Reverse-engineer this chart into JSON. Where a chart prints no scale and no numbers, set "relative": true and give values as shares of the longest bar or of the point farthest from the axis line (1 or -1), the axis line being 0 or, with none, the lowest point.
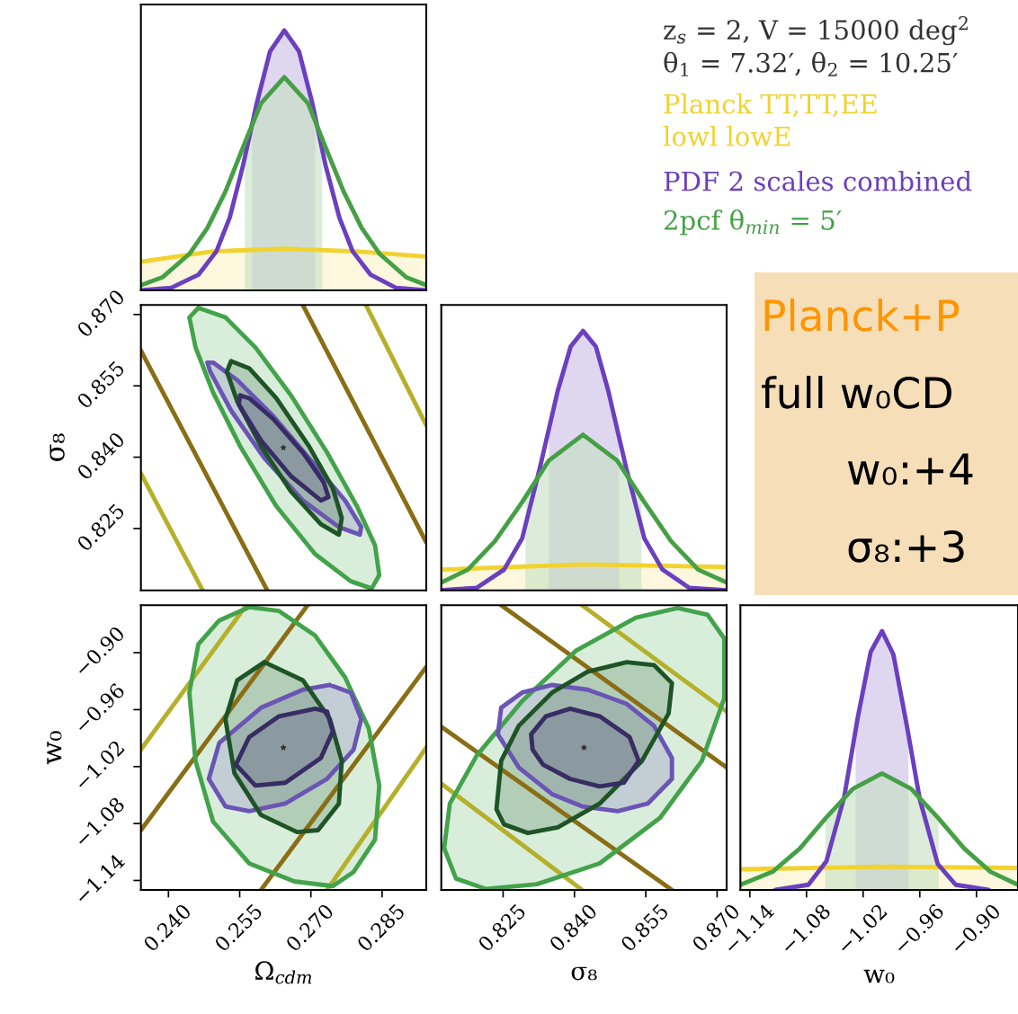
{
  "chart_data": [
    {
      "type": "line",
      "relative": true,
      "xlim": [
        0.2342,
        0.2943
      ],
      "tick_labels": false,
      "legend": "right",
      "legend_title": "z$_{s}$ = 2, V = 15000 deg$^{2}$\nθ$_{1}$ = 7.32′, θ$_{2}$ = 10.25′",
      "annotations": [
        "Planck+P",
        "full w₀CD",
        "w₀:+4",
        "σ₈:+3"
      ],
      "series": [
        {
          "name": "Planck TT,TT,EE\nlowl lowE",
          "color": "#f2d22e",
          "x": [
            0.2342,
            0.2493,
            0.2644,
            0.2796,
            0.2943
          ],
          "values": [
            0.11,
            0.15,
            0.16,
            0.15,
            0.13
          ]
        },
        {
          "name": "PDF 2 scales combined",
          "color": "#6b3fbf",
          "x": [
            0.2342,
            0.2406,
            0.2463,
            0.2501,
            0.2529,
            0.2557,
            0.2586,
            0.2614,
            0.2644,
            0.2675,
            0.2703,
            0.2731,
            0.276,
            0.2788,
            0.2826,
            0.2879,
            0.2943
          ],
          "values": [
            0,
            0.01,
            0.06,
            0.15,
            0.28,
            0.48,
            0.72,
            0.92,
            1,
            0.92,
            0.72,
            0.48,
            0.28,
            0.15,
            0.06,
            0.01,
            0
          ]
        },
        {
          "name": "2pcf θ$_{min}$ = 5′",
          "color": "#45a045",
          "x": [
            0.2342,
            0.2387,
            0.2444,
            0.2482,
            0.252,
            0.2557,
            0.2595,
            0.2644,
            0.2694,
            0.2731,
            0.2769,
            0.2807,
            0.2845,
            0.2901,
            0.2943
          ],
          "values": [
            0.02,
            0.05,
            0.14,
            0.24,
            0.38,
            0.55,
            0.72,
            0.82,
            0.72,
            0.55,
            0.38,
            0.24,
            0.14,
            0.05,
            0.02
          ]
        }
      ],
      "bands": [
        {
          "axis": "x",
          "from": 0.2342,
          "to": 0.2943,
          "color": "#faf1c6"
        },
        {
          "axis": "x",
          "from": 0.2576,
          "to": 0.2709,
          "color": "#c9bde6"
        },
        {
          "axis": "x",
          "from": 0.2561,
          "to": 0.2724,
          "color": "#c4dfc2"
        }
      ]
    },
    {
      "type": "area",
      "xlim": [
        0.2342,
        0.2943
      ],
      "ylim": [
        0.812,
        0.872
      ],
      "ylabel": "σ₈",
      "tick_labels": "y",
      "yticks": [
        {
          "value": 0.87,
          "label": "0.870"
        },
        0.855,
        {
          "value": 0.84,
          "label": "0.840"
        },
        0.825
      ],
      "series": [
        {
          "type": "line",
          "color": "#b5b02a",
          "x": [
            0.2342,
            0.2472,
            null,
            0.2816,
            0.2943
          ],
          "values": [
            0.8366,
            0.812,
            null,
            0.872,
            0.8467
          ]
        },
        {
          "type": "line",
          "color": "#8a6d14",
          "x": [
            0.2342,
            0.2608,
            null,
            0.2683,
            0.2943
          ],
          "values": [
            0.8624,
            0.812,
            null,
            0.872,
            0.8221
          ]
        },
        {
          "color": "#43a34b",
          "x": [
            0.2463,
            0.2444,
            0.2457,
            0.2494,
            0.2551,
            0.2627,
            0.2709,
            0.2784,
            0.2828,
            0.2844,
            0.2835,
            0.2797,
            0.2734,
            0.2658,
            0.2583,
            0.252,
            0.2463
          ],
          "values": [
            0.8714,
            0.8694,
            0.8631,
            0.8536,
            0.8423,
            0.8297,
            0.8196,
            0.8139,
            0.8124,
            0.8152,
            0.8215,
            0.8297,
            0.841,
            0.853,
            0.8631,
            0.8694,
            0.8714
          ]
        },
        {
          "color": "#6a55b5",
          "x": [
            0.2482,
            0.2488,
            0.2532,
            0.2602,
            0.2683,
            0.2759,
            0.2803,
            0.2806,
            0.2772,
            0.2696,
            0.2621,
            0.2545,
            0.2494,
            0.2482
          ],
          "values": [
            0.8599,
            0.858,
            0.8498,
            0.8398,
            0.8309,
            0.8253,
            0.8237,
            0.8253,
            0.8309,
            0.8398,
            0.8486,
            0.8562,
            0.8599,
            0.8599
          ]
        },
        {
          "color": "#1e5425",
          "x": [
            0.2532,
            0.2523,
            0.2545,
            0.2595,
            0.2658,
            0.2721,
            0.2759,
            0.2765,
            0.2746,
            0.2696,
            0.2627,
            0.257,
            0.2532
          ],
          "values": [
            0.8602,
            0.858,
            0.8517,
            0.8423,
            0.8328,
            0.8259,
            0.8237,
            0.8272,
            0.8335,
            0.8423,
            0.8524,
            0.8587,
            0.8602
          ]
        },
        {
          "color": "#372c63",
          "x": [
            0.2551,
            0.2548,
            0.2595,
            0.2658,
            0.2721,
            0.2737,
            0.2727,
            0.2683,
            0.2621,
            0.257,
            0.2551
          ],
          "values": [
            0.853,
            0.8511,
            0.8435,
            0.836,
            0.8309,
            0.8316,
            0.8347,
            0.841,
            0.848,
            0.8524,
            0.853
          ]
        },
        {
          "type": "scatter",
          "marker": "star",
          "color": "#333333",
          "x": [
            0.2642
          ],
          "values": [
            0.842
          ]
        }
      ]
    },
    {
      "type": "line",
      "relative": true,
      "xlim": [
        0.812,
        0.872
      ],
      "tick_labels": false,
      "series": [
        {
          "color": "#f2d22e",
          "x": [
            0.812,
            0.8418,
            0.872
          ],
          "values": [
            0.08,
            0.1,
            0.09
          ]
        },
        {
          "color": "#6b3fbf",
          "x": [
            0.812,
            0.8195,
            0.8252,
            0.829,
            0.8327,
            0.8365,
            0.8392,
            0.8418,
            0.8445,
            0.8471,
            0.8509,
            0.8547,
            0.8585,
            0.8641,
            0.872
          ],
          "values": [
            0,
            0.01,
            0.08,
            0.2,
            0.47,
            0.77,
            0.94,
            1,
            0.94,
            0.77,
            0.47,
            0.2,
            0.08,
            0.01,
            0
          ]
        },
        {
          "color": "#45a045",
          "x": [
            0.812,
            0.8176,
            0.8233,
            0.829,
            0.8346,
            0.8418,
            0.849,
            0.8547,
            0.8603,
            0.866,
            0.872
          ],
          "values": [
            0.03,
            0.08,
            0.19,
            0.34,
            0.5,
            0.6,
            0.5,
            0.34,
            0.19,
            0.08,
            0.03
          ]
        }
      ],
      "bands": [
        {
          "axis": "x",
          "from": 0.812,
          "to": 0.872,
          "color": "#faf1c6"
        },
        {
          "axis": "x",
          "from": 0.8346,
          "to": 0.8494,
          "color": "#c9bde6"
        },
        {
          "axis": "x",
          "from": 0.8297,
          "to": 0.8541,
          "color": "#c4dfc2"
        }
      ]
    },
    {
      "type": "area",
      "xlim": [
        0.2342,
        0.2943
      ],
      "ylim": [
        -1.15,
        -0.85
      ],
      "xlabel": "Ω$_{cdm}$",
      "ylabel": "w₀",
      "xticks": [
        {
          "value": 0.24,
          "label": "0.240"
        },
        0.255,
        {
          "value": 0.27,
          "label": "0.270"
        },
        0.285
      ],
      "yticks": [
        {
          "value": -0.9,
          "label": "−0.90"
        },
        {
          "value": -0.96,
          "label": "−0.96"
        },
        {
          "value": -1.02,
          "label": "−1.02"
        },
        {
          "value": -1.08,
          "label": "−1.08"
        },
        {
          "value": -1.14,
          "label": "−1.14"
        }
      ],
      "series": [
        {
          "type": "line",
          "color": "#b5b02a",
          "x": [
            0.2342,
            0.2564,
            null,
            0.2734,
            0.2943
          ],
          "values": [
            -1.002,
            -0.85,
            null,
            -1.15,
            -1.0
          ]
        },
        {
          "type": "line",
          "color": "#8a6d14",
          "x": [
            0.2342,
            0.2693,
            null,
            0.2595,
            0.2943
          ],
          "values": [
            -1.087,
            -0.85,
            null,
            -1.15,
            -0.915
          ]
        },
        {
          "color": "#43a34b",
          "x": [
            0.257,
            0.2507,
            0.2463,
            0.2444,
            0.2457,
            0.2494,
            0.257,
            0.2665,
            0.2746,
            0.279,
            0.2835,
            0.2844,
            0.2822,
            0.2772,
            0.2709,
            0.2633,
            0.257
          ],
          "values": [
            -0.852,
            -0.866,
            -0.891,
            -0.942,
            -1.014,
            -1.078,
            -1.122,
            -1.141,
            -1.146,
            -1.131,
            -1.097,
            -1.04,
            -0.98,
            -0.926,
            -0.882,
            -0.856,
            -0.852
          ]
        },
        {
          "color": "#6a55b5",
          "x": [
            0.274,
            0.2683,
            0.2595,
            0.2507,
            0.2485,
            0.252,
            0.257,
            0.2646,
            0.2734,
            0.279,
            0.2806,
            0.2784,
            0.274
          ],
          "values": [
            -0.934,
            -0.939,
            -0.958,
            -0.995,
            -1.033,
            -1.062,
            -1.067,
            -1.059,
            -1.033,
            -1.002,
            -0.97,
            -0.942,
            -0.934
          ]
        },
        {
          "color": "#1e5425",
          "x": [
            0.2602,
            0.2545,
            0.252,
            0.2539,
            0.2595,
            0.2671,
            0.2715,
            0.2759,
            0.2765,
            0.274,
            0.2683,
            0.2602
          ],
          "values": [
            -0.91,
            -0.929,
            -0.97,
            -1.027,
            -1.071,
            -1.089,
            -1.087,
            -1.059,
            -1.014,
            -0.97,
            -0.929,
            -0.91
          ]
        },
        {
          "color": "#372c63",
          "x": [
            0.2709,
            0.2633,
            0.257,
            0.2542,
            0.2583,
            0.2646,
            0.2721,
            0.2746,
            0.2734,
            0.2709
          ],
          "values": [
            -0.959,
            -0.967,
            -0.989,
            -1.018,
            -1.04,
            -1.037,
            -1.011,
            -0.983,
            -0.962,
            -0.959
          ]
        },
        {
          "type": "scatter",
          "marker": "star",
          "color": "#333333",
          "x": [
            0.2642
          ],
          "values": [
            -1.0
          ]
        }
      ]
    },
    {
      "type": "area",
      "xlim": [
        0.812,
        0.872
      ],
      "ylim": [
        -1.15,
        -0.85
      ],
      "xlabel": "σ₈",
      "tick_labels": "x",
      "xticks": [
        0.825,
        {
          "value": 0.84,
          "label": "0.840"
        },
        0.855,
        {
          "value": 0.87,
          "label": "0.870"
        }
      ],
      "series": [
        {
          "type": "line",
          "color": "#b5b02a",
          "x": [
            0.812,
            0.8416,
            null,
            0.8416,
            0.872
          ],
          "values": [
            -1.038,
            -1.15,
            null,
            -0.85,
            -0.962
          ]
        },
        {
          "type": "line",
          "color": "#8a6d14",
          "x": [
            0.812,
            0.8605,
            null,
            0.8246,
            0.872
          ],
          "values": [
            -0.978,
            -1.15,
            null,
            -0.85,
            -1.021
          ]
        },
        {
          "color": "#43a34b",
          "x": [
            0.8126,
            0.8138,
            0.8195,
            0.829,
            0.8403,
            0.8529,
            0.8617,
            0.868,
            0.8715,
            0.8715,
            0.8668,
            0.858,
            0.8453,
            0.8321,
            0.8214,
            0.8151,
            0.8126
          ],
          "values": [
            -1.106,
            -1.059,
            -1.008,
            -0.951,
            -0.898,
            -0.863,
            -0.853,
            -0.86,
            -0.885,
            -0.948,
            -1.014,
            -1.074,
            -1.122,
            -1.144,
            -1.149,
            -1.138,
            -1.106
          ]
        },
        {
          "color": "#6a55b5",
          "x": [
            0.8246,
            0.829,
            0.8353,
            0.8428,
            0.851,
            0.8567,
            0.8605,
            0.8605,
            0.8554,
            0.8491,
            0.8416,
            0.8353,
            0.8283,
            0.8239,
            0.8246
          ],
          "values": [
            -0.958,
            -0.942,
            -0.934,
            -0.939,
            -0.954,
            -0.977,
            -1.011,
            -1.033,
            -1.059,
            -1.067,
            -1.062,
            -1.049,
            -1.021,
            -0.986,
            -0.958
          ]
        },
        {
          "color": "#1e5425",
          "x": [
            0.8236,
            0.8252,
            0.8302,
            0.8365,
            0.8453,
            0.8542,
            0.8598,
            0.8605,
            0.8567,
            0.851,
            0.8428,
            0.8353,
            0.8283,
            0.8246,
            0.8236
          ],
          "values": [
            -1.065,
            -1.081,
            -1.09,
            -1.084,
            -1.059,
            -1.014,
            -0.964,
            -0.932,
            -0.913,
            -0.91,
            -0.92,
            -0.942,
            -0.977,
            -1.014,
            -1.065
          ]
        },
        {
          "color": "#372c63",
          "x": [
            0.8309,
            0.834,
            0.8391,
            0.8453,
            0.8516,
            0.8535,
            0.8504,
            0.8453,
            0.8391,
            0.8334,
            0.8312,
            0.8309
          ],
          "values": [
            -0.986,
            -0.967,
            -0.959,
            -0.967,
            -0.989,
            -1.014,
            -1.037,
            -1.041,
            -1.033,
            -1.018,
            -1.002,
            -0.986
          ]
        },
        {
          "type": "scatter",
          "marker": "star",
          "color": "#333333",
          "x": [
            0.842
          ],
          "values": [
            -1.0
          ]
        }
      ]
    },
    {
      "type": "line",
      "relative": true,
      "xlim": [
        -1.15,
        -0.856
      ],
      "xlabel": "w₀",
      "tick_labels": "x",
      "xticks": [
        {
          "value": -1.14,
          "label": "−1.14"
        },
        {
          "value": -1.08,
          "label": "−1.08"
        },
        {
          "value": -1.02,
          "label": "−1.02"
        },
        {
          "value": -0.96,
          "label": "−0.96"
        },
        {
          "value": -0.9,
          "label": "−0.90"
        }
      ],
      "series": [
        {
          "color": "#f2d22e",
          "x": [
            -1.15,
            -1.0,
            -0.856
          ],
          "values": [
            0.08,
            0.09,
            0.085
          ]
        },
        {
          "color": "#6b3fbf",
          "x": [
            -1.113,
            -1.078,
            -1.059,
            -1.04,
            -1.026,
            -1.012,
            -1.0,
            -0.988,
            -0.974,
            -0.96,
            -0.941,
            -0.922,
            -0.887
          ],
          "values": [
            0,
            0.02,
            0.11,
            0.36,
            0.66,
            0.92,
            1,
            0.91,
            0.64,
            0.35,
            0.1,
            0.02,
            0
          ]
        },
        {
          "color": "#45a045",
          "x": [
            -1.15,
            -1.116,
            -1.087,
            -1.059,
            -1.031,
            -1.0,
            -0.969,
            -0.941,
            -0.913,
            -0.885,
            -0.856
          ],
          "values": [
            0.02,
            0.07,
            0.16,
            0.28,
            0.39,
            0.45,
            0.39,
            0.28,
            0.16,
            0.07,
            0.02
          ]
        }
      ],
      "bands": [
        {
          "axis": "x",
          "from": -1.15,
          "to": -0.856,
          "color": "#faf1c6"
        },
        {
          "axis": "x",
          "from": -1.028,
          "to": -0.972,
          "color": "#c9bde6"
        },
        {
          "axis": "x",
          "from": -1.06,
          "to": -0.94,
          "color": "#c4dfc2"
        }
      ]
    }
  ]
}
